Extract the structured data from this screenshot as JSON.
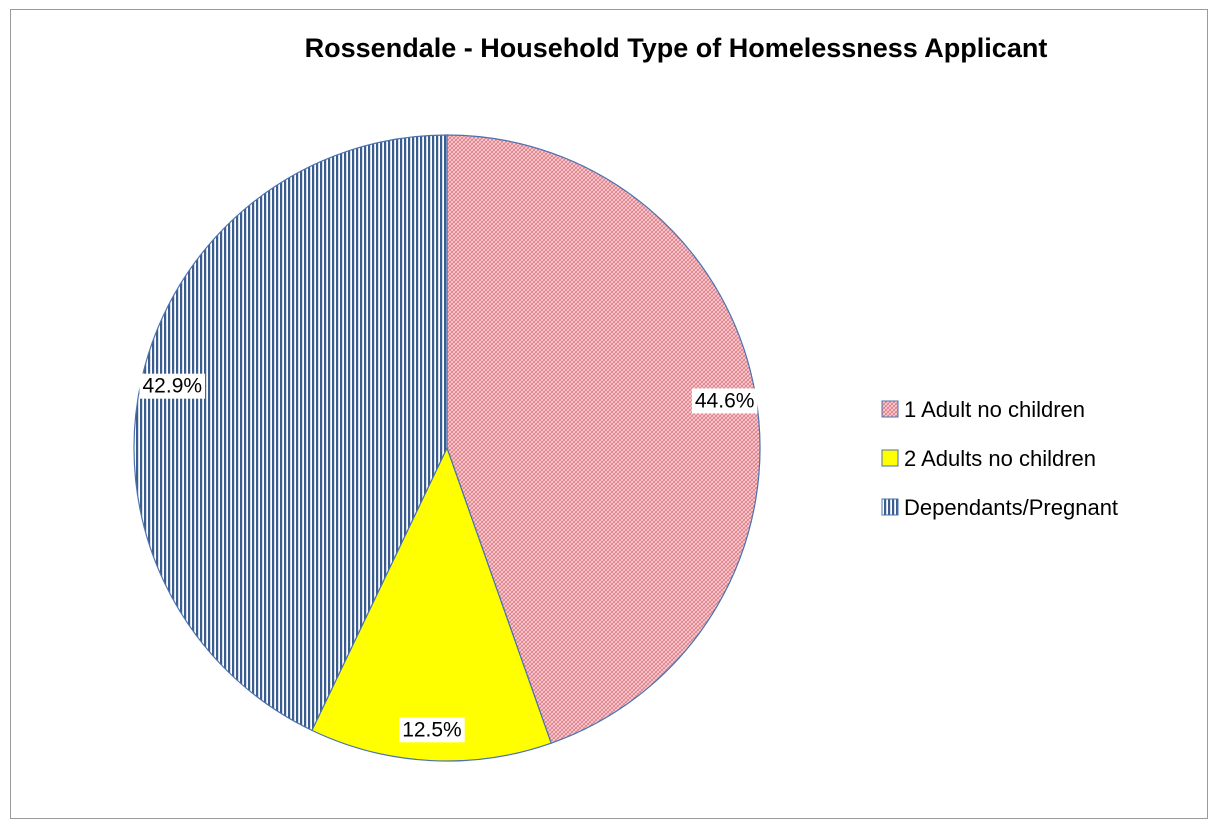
{
  "chart_data": {
    "type": "pie",
    "title": "Rossendale - Household Type of Homelessness Applicant",
    "categories": [
      "1 Adult no children",
      "2 Adults no children",
      "Dependants/Pregnant"
    ],
    "values": [
      44.6,
      12.5,
      42.9
    ],
    "labels": [
      "44.6%",
      "12.5%",
      "42.9%"
    ],
    "colors": [
      "#f2b8bf",
      "#ffff00",
      "#7d90b3"
    ],
    "patterns": [
      "crosshatch",
      "solid",
      "vertical-stripes"
    ],
    "start_angle_deg": 0,
    "direction": "clockwise",
    "legend_position": "right",
    "grid": false
  }
}
